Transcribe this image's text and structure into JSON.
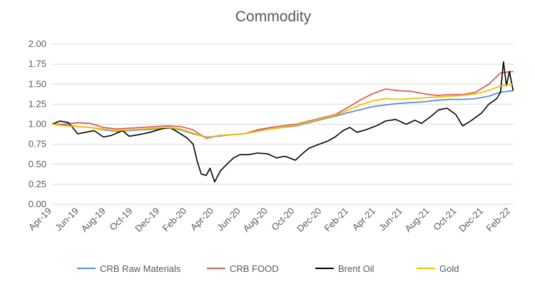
{
  "chart_data": {
    "type": "line",
    "title": "Commodity",
    "xlabel": "",
    "ylabel": "",
    "ylim": [
      0,
      2
    ],
    "yticks": [
      "0.00",
      "0.25",
      "0.50",
      "0.75",
      "1.00",
      "1.25",
      "1.50",
      "1.75",
      "2.00"
    ],
    "xlim": [
      "2019-04",
      "2022-04"
    ],
    "x_tick_labels": [
      "Apr-19",
      "Jun-19",
      "Aug-19",
      "Oct-19",
      "Dec-19",
      "Feb-20",
      "Apr-20",
      "Jun-20",
      "Aug-20",
      "Oct-20",
      "Dec-20",
      "Feb-21",
      "Apr-21",
      "Jun-21",
      "Aug-21",
      "Oct-21",
      "Dec-21",
      "Feb-22"
    ],
    "grid": "horizontal",
    "legend_position": "bottom",
    "series": [
      {
        "name": "CRB Raw Materials",
        "color": "#5b8fd6",
        "x": [
          "2019-04-01",
          "2019-05-01",
          "2019-06-01",
          "2019-07-01",
          "2019-08-01",
          "2019-09-01",
          "2019-10-01",
          "2019-11-01",
          "2019-12-01",
          "2020-01-01",
          "2020-02-01",
          "2020-03-01",
          "2020-04-01",
          "2020-05-01",
          "2020-06-01",
          "2020-07-01",
          "2020-08-01",
          "2020-09-01",
          "2020-10-01",
          "2020-11-01",
          "2020-12-01",
          "2021-01-01",
          "2021-02-01",
          "2021-03-01",
          "2021-04-01",
          "2021-05-01",
          "2021-06-01",
          "2021-07-01",
          "2021-08-01",
          "2021-09-01",
          "2021-10-01",
          "2021-11-01",
          "2021-12-01",
          "2022-01-01",
          "2022-02-01",
          "2022-03-01",
          "2022-03-31"
        ],
        "values": [
          1.0,
          0.99,
          0.97,
          0.96,
          0.93,
          0.91,
          0.92,
          0.93,
          0.94,
          0.95,
          0.93,
          0.88,
          0.84,
          0.85,
          0.87,
          0.88,
          0.92,
          0.94,
          0.96,
          0.98,
          1.02,
          1.06,
          1.1,
          1.14,
          1.18,
          1.22,
          1.24,
          1.26,
          1.27,
          1.28,
          1.3,
          1.31,
          1.31,
          1.32,
          1.35,
          1.4,
          1.42
        ]
      },
      {
        "name": "CRB FOOD",
        "color": "#d9625b",
        "x": [
          "2019-04-01",
          "2019-05-01",
          "2019-06-01",
          "2019-07-01",
          "2019-08-01",
          "2019-09-01",
          "2019-10-01",
          "2019-11-01",
          "2019-12-01",
          "2020-01-01",
          "2020-02-01",
          "2020-03-01",
          "2020-04-01",
          "2020-05-01",
          "2020-06-01",
          "2020-07-01",
          "2020-08-01",
          "2020-09-01",
          "2020-10-01",
          "2020-11-01",
          "2020-12-01",
          "2021-01-01",
          "2021-02-01",
          "2021-03-01",
          "2021-04-01",
          "2021-05-01",
          "2021-06-01",
          "2021-07-01",
          "2021-08-01",
          "2021-09-01",
          "2021-10-01",
          "2021-11-01",
          "2021-12-01",
          "2022-01-01",
          "2022-02-01",
          "2022-03-01",
          "2022-03-31"
        ],
        "values": [
          1.0,
          1.0,
          1.02,
          1.01,
          0.96,
          0.94,
          0.95,
          0.96,
          0.97,
          0.98,
          0.97,
          0.93,
          0.82,
          0.86,
          0.87,
          0.88,
          0.93,
          0.96,
          0.98,
          1.0,
          1.04,
          1.08,
          1.12,
          1.2,
          1.3,
          1.38,
          1.44,
          1.42,
          1.41,
          1.38,
          1.36,
          1.37,
          1.37,
          1.4,
          1.5,
          1.64,
          1.66
        ]
      },
      {
        "name": "Brent Oil",
        "color": "#000000",
        "x": [
          "2019-04-01",
          "2019-04-20",
          "2019-05-10",
          "2019-06-01",
          "2019-06-20",
          "2019-07-10",
          "2019-08-01",
          "2019-08-20",
          "2019-09-15",
          "2019-10-01",
          "2019-10-25",
          "2019-11-20",
          "2019-12-15",
          "2020-01-06",
          "2020-01-25",
          "2020-02-15",
          "2020-03-01",
          "2020-03-10",
          "2020-03-20",
          "2020-04-01",
          "2020-04-10",
          "2020-04-21",
          "2020-05-05",
          "2020-05-20",
          "2020-06-05",
          "2020-06-20",
          "2020-07-10",
          "2020-08-01",
          "2020-08-25",
          "2020-09-15",
          "2020-10-05",
          "2020-10-30",
          "2020-11-15",
          "2020-12-01",
          "2020-12-20",
          "2021-01-15",
          "2021-02-01",
          "2021-02-20",
          "2021-03-08",
          "2021-03-25",
          "2021-04-15",
          "2021-05-10",
          "2021-06-01",
          "2021-06-25",
          "2021-07-20",
          "2021-08-10",
          "2021-08-25",
          "2021-09-15",
          "2021-10-05",
          "2021-10-25",
          "2021-11-15",
          "2021-12-01",
          "2021-12-20",
          "2022-01-15",
          "2022-02-01",
          "2022-02-20",
          "2022-03-01",
          "2022-03-08",
          "2022-03-15",
          "2022-03-22",
          "2022-03-31"
        ],
        "values": [
          1.0,
          1.04,
          1.02,
          0.88,
          0.9,
          0.92,
          0.84,
          0.86,
          0.92,
          0.85,
          0.87,
          0.9,
          0.94,
          0.96,
          0.9,
          0.83,
          0.75,
          0.55,
          0.38,
          0.36,
          0.45,
          0.28,
          0.42,
          0.5,
          0.58,
          0.62,
          0.62,
          0.64,
          0.63,
          0.58,
          0.6,
          0.55,
          0.63,
          0.7,
          0.74,
          0.79,
          0.84,
          0.92,
          0.96,
          0.9,
          0.93,
          0.98,
          1.04,
          1.06,
          1.0,
          1.05,
          1.01,
          1.09,
          1.18,
          1.2,
          1.12,
          0.98,
          1.04,
          1.14,
          1.25,
          1.32,
          1.4,
          1.78,
          1.48,
          1.66,
          1.42
        ]
      },
      {
        "name": "Gold",
        "color": "#f2c100",
        "x": [
          "2019-04-01",
          "2019-05-01",
          "2019-06-01",
          "2019-07-01",
          "2019-08-01",
          "2019-09-01",
          "2019-10-01",
          "2019-11-01",
          "2019-12-01",
          "2020-01-01",
          "2020-02-01",
          "2020-03-01",
          "2020-04-01",
          "2020-05-01",
          "2020-06-01",
          "2020-07-01",
          "2020-08-01",
          "2020-09-01",
          "2020-10-01",
          "2020-11-01",
          "2020-12-01",
          "2021-01-01",
          "2021-02-01",
          "2021-03-01",
          "2021-04-01",
          "2021-05-01",
          "2021-06-01",
          "2021-07-01",
          "2021-08-01",
          "2021-09-01",
          "2021-10-01",
          "2021-11-01",
          "2021-12-01",
          "2022-01-01",
          "2022-02-01",
          "2022-03-01",
          "2022-03-31"
        ],
        "values": [
          1.0,
          0.98,
          0.97,
          0.96,
          0.94,
          0.92,
          0.93,
          0.94,
          0.95,
          0.96,
          0.94,
          0.89,
          0.83,
          0.86,
          0.87,
          0.88,
          0.91,
          0.94,
          0.96,
          0.99,
          1.03,
          1.07,
          1.11,
          1.17,
          1.24,
          1.29,
          1.32,
          1.31,
          1.32,
          1.33,
          1.34,
          1.35,
          1.36,
          1.38,
          1.42,
          1.48,
          1.5
        ]
      }
    ]
  }
}
